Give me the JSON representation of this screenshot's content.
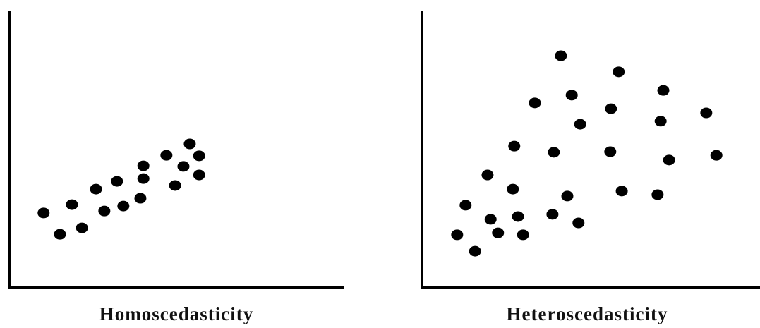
{
  "chart_data": [
    {
      "type": "scatter",
      "title": "Homoscedasticity",
      "color": "#000000",
      "xlim": [
        0,
        100
      ],
      "ylim": [
        0,
        100
      ],
      "x": [
        10.1,
        15.0,
        18.6,
        21.6,
        25.8,
        28.3,
        32.1,
        34.0,
        39.1,
        40.0,
        40.0,
        46.9,
        49.5,
        52.0,
        53.9,
        56.7,
        56.7
      ],
      "y": [
        27.0,
        19.3,
        30.0,
        21.6,
        35.6,
        27.7,
        38.4,
        29.5,
        32.3,
        44.0,
        39.4,
        47.8,
        36.9,
        43.8,
        51.9,
        47.6,
        40.7
      ]
    },
    {
      "type": "scatter",
      "title": "Heteroscedasticity",
      "color": "#000000",
      "xlim": [
        0,
        100
      ],
      "ylim": [
        0,
        100
      ],
      "x": [
        41.1,
        58.2,
        71.4,
        44.3,
        33.4,
        55.9,
        84.1,
        46.8,
        70.6,
        27.3,
        39.0,
        55.7,
        87.1,
        73.1,
        19.4,
        26.9,
        43.0,
        59.1,
        69.7,
        12.9,
        20.3,
        28.4,
        38.6,
        46.3,
        22.5,
        29.9,
        10.4,
        15.7
      ],
      "y": [
        83.7,
        77.9,
        71.2,
        69.5,
        66.7,
        64.6,
        63.1,
        59.0,
        60.1,
        51.1,
        48.9,
        49.1,
        47.8,
        46.1,
        40.7,
        35.6,
        33.1,
        34.9,
        33.6,
        29.8,
        24.7,
        25.7,
        26.5,
        23.4,
        19.8,
        19.1,
        19.1,
        13.2
      ]
    }
  ]
}
